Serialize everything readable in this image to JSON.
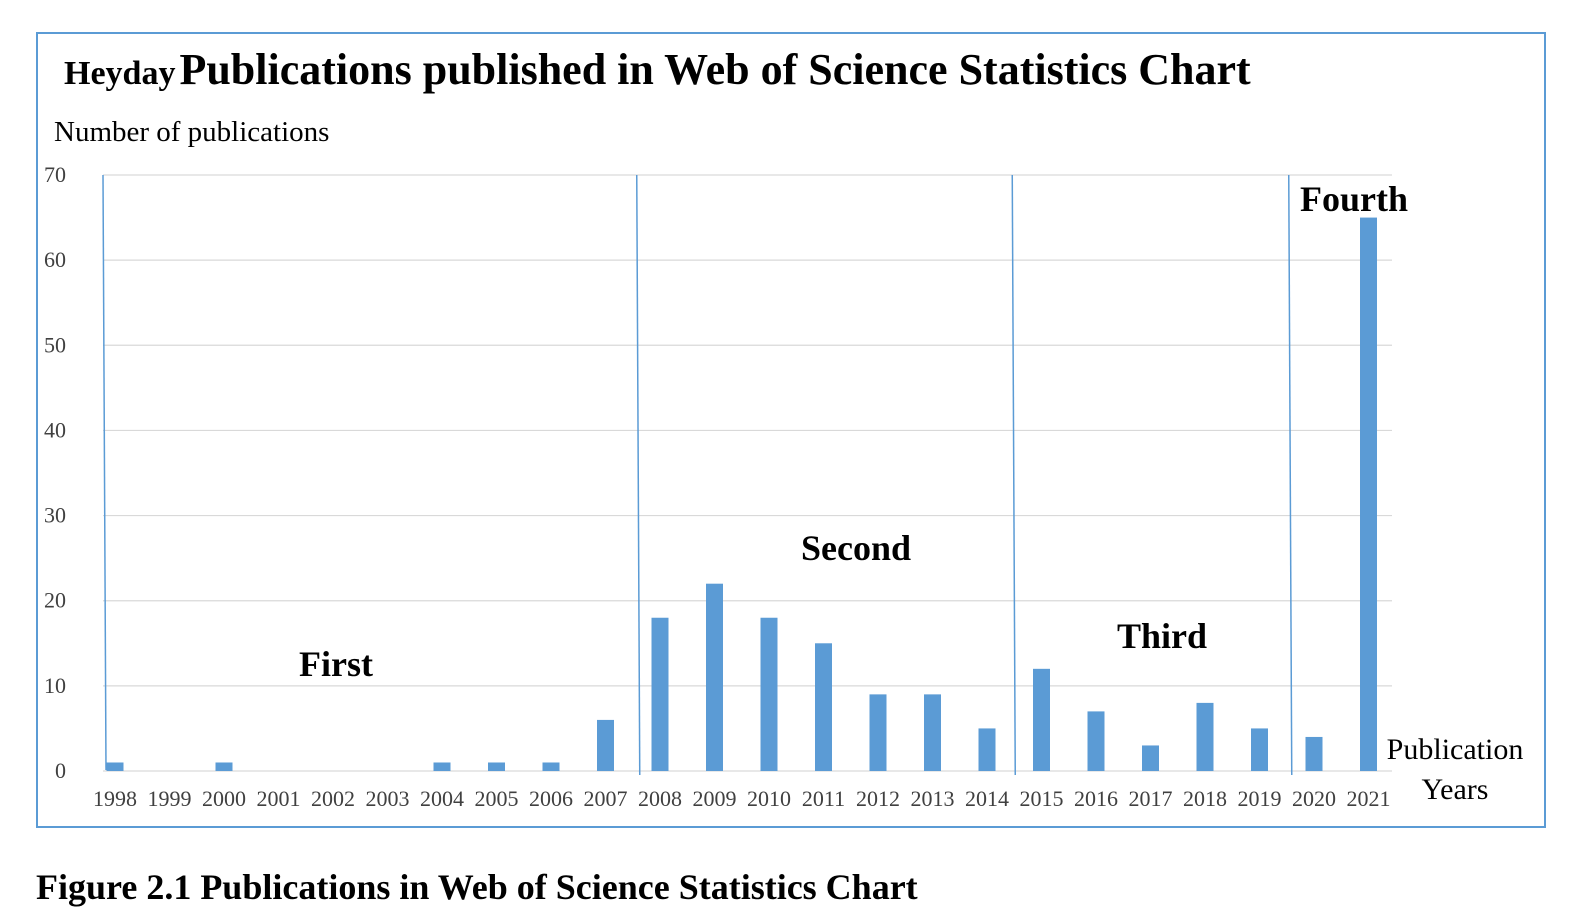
{
  "title_small": "Heyday",
  "title_big": "Publications published in Web of Science Statistics Chart",
  "caption": "Figure 2.1 Publications in Web of Science Statistics Chart",
  "chart_data": {
    "type": "bar",
    "ylabel": "Number of publications",
    "xlabel": "Publication Years",
    "ylim": [
      0,
      70
    ],
    "yticks": [
      0,
      10,
      20,
      30,
      40,
      50,
      60,
      70
    ],
    "grid": true,
    "categories": [
      "1998",
      "1999",
      "2000",
      "2001",
      "2002",
      "2003",
      "2004",
      "2005",
      "2006",
      "2007",
      "2008",
      "2009",
      "2010",
      "2011",
      "2012",
      "2013",
      "2014",
      "2015",
      "2016",
      "2017",
      "2018",
      "2019",
      "2020",
      "2021"
    ],
    "values": [
      1,
      0,
      1,
      0,
      0,
      0,
      1,
      1,
      1,
      6,
      18,
      22,
      18,
      15,
      9,
      9,
      5,
      12,
      7,
      3,
      8,
      5,
      4,
      65
    ],
    "bar_color": "#5b9bd5",
    "eras": [
      {
        "label": "First",
        "start": "1998",
        "end": "2007"
      },
      {
        "label": "Second",
        "start": "2008",
        "end": "2014"
      },
      {
        "label": "Third",
        "start": "2015",
        "end": "2019"
      },
      {
        "label": "Fourth",
        "start": "2020",
        "end": "2021"
      }
    ]
  }
}
